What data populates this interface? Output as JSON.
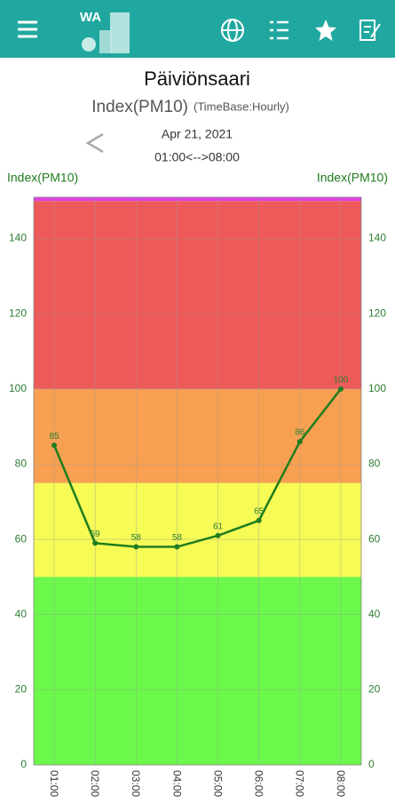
{
  "header": {
    "logo": "WA"
  },
  "chart_data": {
    "type": "line",
    "title": "Päiviönsaari",
    "subtitle": "Index(PM10)",
    "timebase": "(TimeBase:Hourly)",
    "date": "Apr 21, 2021",
    "time_range": "01:00<-->08:00",
    "y_label": "Index(PM10)",
    "y2_label": "Index(PM10)",
    "categories": [
      "01:00",
      "02:00",
      "03:00",
      "04:00",
      "05:00",
      "06:00",
      "07:00",
      "08:00"
    ],
    "values": [
      85,
      59,
      58,
      58,
      61,
      65,
      86,
      100
    ],
    "color": "#1e7d1e",
    "ylim": [
      0,
      151
    ],
    "yticks": [
      0,
      20,
      40,
      60,
      80,
      100,
      120,
      140
    ],
    "grid": true,
    "bands": [
      {
        "from": 0,
        "to": 50,
        "color": "#6cf74b"
      },
      {
        "from": 50,
        "to": 75,
        "color": "#f6fb56"
      },
      {
        "from": 75,
        "to": 100,
        "color": "#f8a052"
      },
      {
        "from": 100,
        "to": 150,
        "color": "#ee5a5a"
      },
      {
        "from": 150,
        "to": 151,
        "color": "#e040e0"
      }
    ]
  }
}
